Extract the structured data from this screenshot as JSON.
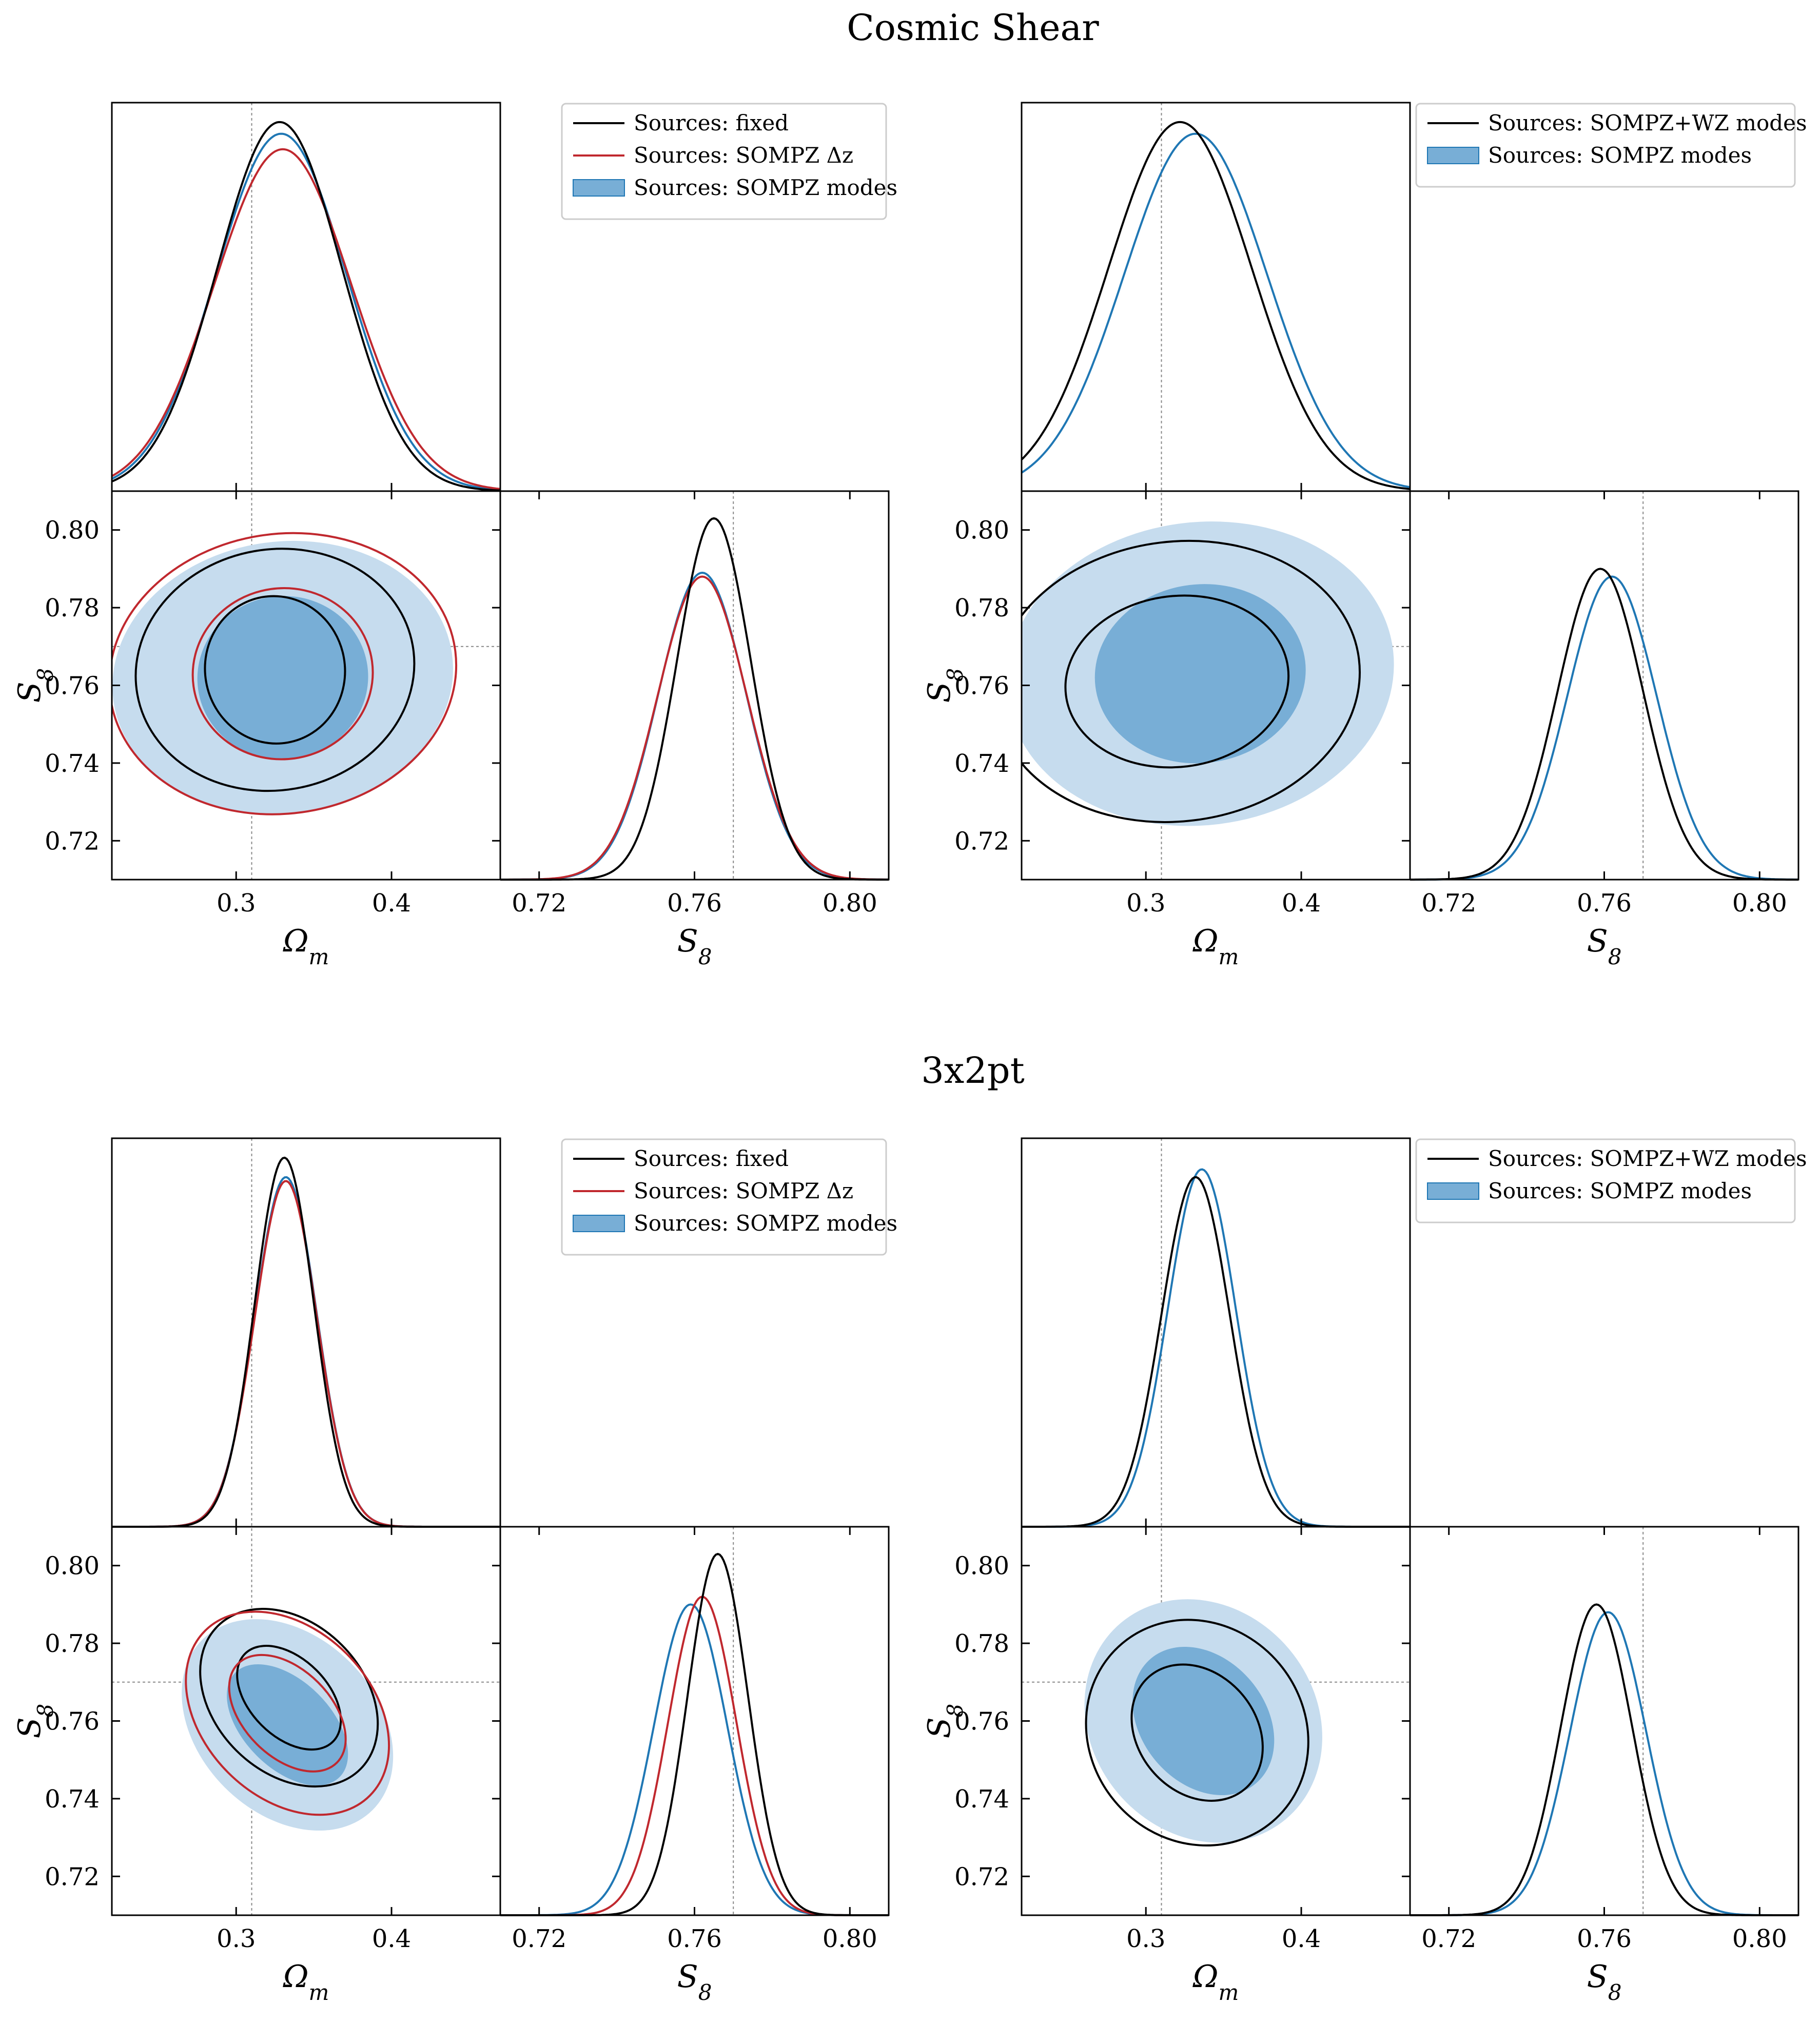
{
  "figure": {
    "sections": [
      {
        "title": "Cosmic Shear"
      },
      {
        "title": "3x2pt"
      }
    ]
  },
  "colors": {
    "fixed": "#000000",
    "sompz_dz": "#c0282e",
    "sompz_modes": "#1f77b4",
    "sompz_modes_fill_inner": "#78aed6",
    "sompz_modes_fill_outer": "#c6dcee",
    "reference_line": "#888888"
  },
  "axes": {
    "omega_m": {
      "label": "Ω",
      "sub": "m",
      "ticks": [
        "0.3",
        "0.4"
      ],
      "tick_values": [
        0.3,
        0.4
      ],
      "range": [
        0.22,
        0.47
      ]
    },
    "s8": {
      "label": "S",
      "sub": "8",
      "ticks": [
        "0.72",
        "0.74",
        "0.76",
        "0.78",
        "0.80"
      ],
      "tick_values": [
        0.72,
        0.74,
        0.76,
        0.78,
        0.8
      ],
      "range": [
        0.71,
        0.81
      ]
    },
    "s8_marginal_ticks": [
      "0.72",
      "0.76",
      "0.80"
    ],
    "s8_marginal_tick_values": [
      0.72,
      0.76,
      0.8
    ],
    "reference": {
      "omega_m": 0.31,
      "s8": 0.77
    }
  },
  "legends": {
    "left": [
      {
        "label": "Sources: fixed",
        "style": "line",
        "series": "fixed"
      },
      {
        "label": "Sources: SOMPZ Δz",
        "style": "line",
        "series": "sompz_dz"
      },
      {
        "label": "Sources: SOMPZ modes",
        "style": "patch",
        "series": "sompz_modes"
      }
    ],
    "right": [
      {
        "label": "Sources: SOMPZ+WZ modes",
        "style": "line",
        "series": "fixed"
      },
      {
        "label": "Sources: SOMPZ modes",
        "style": "patch",
        "series": "sompz_modes"
      }
    ]
  },
  "chart_data": [
    {
      "type": "corner",
      "section": "Cosmic Shear",
      "series": [
        {
          "name": "Sources: fixed",
          "color": "fixed",
          "omega_m": {
            "mean": 0.328,
            "sd": 0.04,
            "peak": 0.95
          },
          "s8": {
            "mean": 0.765,
            "sd": 0.0095,
            "peak": 0.93
          },
          "contour": {
            "cx": 0.325,
            "cy": 0.764,
            "inner": [
              0.045,
              0.019
            ],
            "outer": [
              0.09,
              0.031
            ],
            "rot": -10
          }
        },
        {
          "name": "Sources: SOMPZ Δz",
          "color": "sompz_dz",
          "omega_m": {
            "mean": 0.33,
            "sd": 0.044,
            "peak": 0.88
          },
          "s8": {
            "mean": 0.762,
            "sd": 0.0115,
            "peak": 0.78
          },
          "contour": {
            "cx": 0.33,
            "cy": 0.763,
            "inner": [
              0.058,
              0.022
            ],
            "outer": [
              0.112,
              0.036
            ],
            "rot": -8
          }
        },
        {
          "name": "Sources: SOMPZ modes",
          "color": "sompz_modes",
          "fill": true,
          "omega_m": {
            "mean": 0.329,
            "sd": 0.042,
            "peak": 0.92
          },
          "s8": {
            "mean": 0.762,
            "sd": 0.0113,
            "peak": 0.79
          },
          "contour": {
            "cx": 0.33,
            "cy": 0.762,
            "inner": [
              0.055,
              0.021
            ],
            "outer": [
              0.11,
              0.035
            ],
            "rot": -8
          }
        }
      ]
    },
    {
      "type": "corner",
      "section": "Cosmic Shear",
      "series": [
        {
          "name": "Sources: SOMPZ+WZ modes",
          "color": "fixed",
          "omega_m": {
            "mean": 0.322,
            "sd": 0.046,
            "peak": 0.95
          },
          "s8": {
            "mean": 0.759,
            "sd": 0.011,
            "peak": 0.8
          },
          "contour": {
            "cx": 0.32,
            "cy": 0.761,
            "inner": [
              0.072,
              0.022
            ],
            "outer": [
              0.118,
              0.036
            ],
            "rot": -7
          }
        },
        {
          "name": "Sources: SOMPZ modes",
          "color": "sompz_modes",
          "fill": true,
          "omega_m": {
            "mean": 0.332,
            "sd": 0.046,
            "peak": 0.92
          },
          "s8": {
            "mean": 0.762,
            "sd": 0.0115,
            "peak": 0.78
          },
          "contour": {
            "cx": 0.335,
            "cy": 0.763,
            "inner": [
              0.068,
              0.023
            ],
            "outer": [
              0.125,
              0.039
            ],
            "rot": -7
          }
        }
      ]
    },
    {
      "type": "corner",
      "section": "3x2pt",
      "series": [
        {
          "name": "Sources: fixed",
          "color": "fixed",
          "omega_m": {
            "mean": 0.331,
            "sd": 0.019,
            "peak": 0.95
          },
          "s8": {
            "mean": 0.766,
            "sd": 0.0078,
            "peak": 0.93
          },
          "contour": {
            "cx": 0.334,
            "cy": 0.766,
            "inner": [
              0.025,
              0.016
            ],
            "outer": [
              0.048,
              0.026
            ],
            "rot": -45
          }
        },
        {
          "name": "Sources: SOMPZ Δz",
          "color": "sompz_dz",
          "omega_m": {
            "mean": 0.332,
            "sd": 0.02,
            "peak": 0.89
          },
          "s8": {
            "mean": 0.762,
            "sd": 0.0088,
            "peak": 0.82
          },
          "contour": {
            "cx": 0.333,
            "cy": 0.762,
            "inner": [
              0.028,
              0.018
            ],
            "outer": [
              0.054,
              0.03
            ],
            "rot": -45
          }
        },
        {
          "name": "Sources: SOMPZ modes",
          "color": "sompz_modes",
          "fill": true,
          "omega_m": {
            "mean": 0.332,
            "sd": 0.02,
            "peak": 0.9
          },
          "s8": {
            "mean": 0.759,
            "sd": 0.0095,
            "peak": 0.8
          },
          "contour": {
            "cx": 0.333,
            "cy": 0.759,
            "inner": [
              0.028,
              0.019
            ],
            "outer": [
              0.057,
              0.031
            ],
            "rot": -45
          }
        }
      ]
    },
    {
      "type": "corner",
      "section": "3x2pt",
      "series": [
        {
          "name": "Sources: SOMPZ+WZ modes",
          "color": "fixed",
          "omega_m": {
            "mean": 0.332,
            "sd": 0.022,
            "peak": 0.9
          },
          "s8": {
            "mean": 0.758,
            "sd": 0.0092,
            "peak": 0.8
          },
          "contour": {
            "cx": 0.333,
            "cy": 0.757,
            "inner": [
              0.038,
              0.019
            ],
            "outer": [
              0.069,
              0.03
            ],
            "rot": -40
          }
        },
        {
          "name": "Sources: SOMPZ modes",
          "color": "sompz_modes",
          "fill": true,
          "omega_m": {
            "mean": 0.336,
            "sd": 0.022,
            "peak": 0.92
          },
          "s8": {
            "mean": 0.761,
            "sd": 0.0098,
            "peak": 0.78
          },
          "contour": {
            "cx": 0.337,
            "cy": 0.76,
            "inner": [
              0.04,
              0.021
            ],
            "outer": [
              0.072,
              0.033
            ],
            "rot": -40
          }
        }
      ]
    }
  ]
}
